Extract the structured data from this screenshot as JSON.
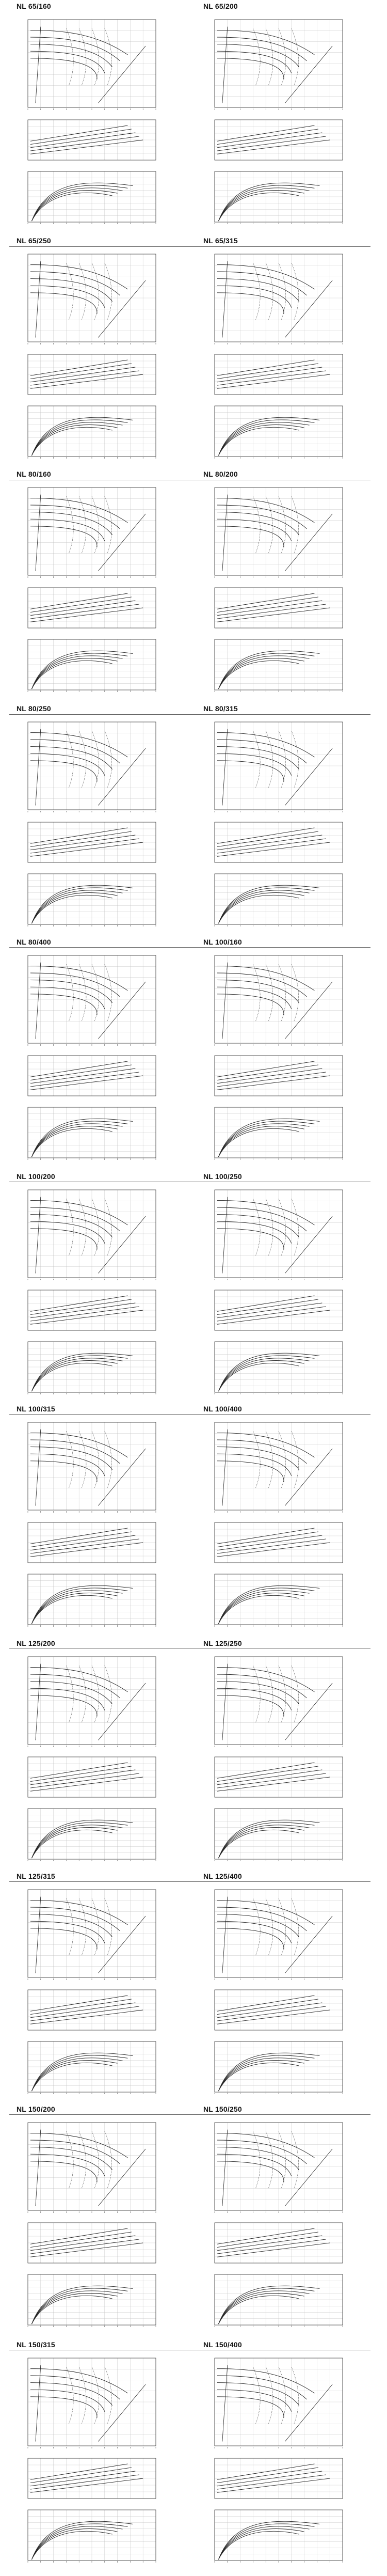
{
  "models": [
    {
      "id": "nl-65-160",
      "title": "NL 65/160"
    },
    {
      "id": "nl-65-200",
      "title": "NL 65/200"
    },
    {
      "id": "nl-65-250",
      "title": "NL 65/250"
    },
    {
      "id": "nl-65-315",
      "title": "NL 65/315"
    },
    {
      "id": "nl-80-160",
      "title": "NL 80/160"
    },
    {
      "id": "nl-80-200",
      "title": "NL 80/200"
    },
    {
      "id": "nl-80-250",
      "title": "NL 80/250"
    },
    {
      "id": "nl-80-315",
      "title": "NL 80/315"
    },
    {
      "id": "nl-80-400",
      "title": "NL 80/400"
    },
    {
      "id": "nl-100-160",
      "title": "NL 100/160"
    },
    {
      "id": "nl-100-200",
      "title": "NL 100/200"
    },
    {
      "id": "nl-100-250",
      "title": "NL 100/250"
    },
    {
      "id": "nl-100-315",
      "title": "NL 100/315"
    },
    {
      "id": "nl-100-400",
      "title": "NL 100/400"
    },
    {
      "id": "nl-125-200",
      "title": "NL 125/200"
    },
    {
      "id": "nl-125-250",
      "title": "NL 125/250"
    },
    {
      "id": "nl-125-315",
      "title": "NL 125/315"
    },
    {
      "id": "nl-125-400",
      "title": "NL 125/400"
    },
    {
      "id": "nl-150-200",
      "title": "NL 150/200"
    },
    {
      "id": "nl-150-250",
      "title": "NL 150/250"
    },
    {
      "id": "nl-150-315",
      "title": "NL 150/315"
    },
    {
      "id": "nl-150-400",
      "title": "NL 150/400"
    }
  ],
  "chart_data": {
    "type": "line",
    "description_note": "",
    "panels_per_model": [
      "head-flow curves with efficiency contours",
      "power-flow curves",
      "efficiency-flow curves"
    ],
    "impeller_curves_per_panel": 5,
    "colors": {
      "line": "#222222",
      "grid": "#bdbdbd",
      "axis": "#333333",
      "text": "#111111"
    }
  }
}
